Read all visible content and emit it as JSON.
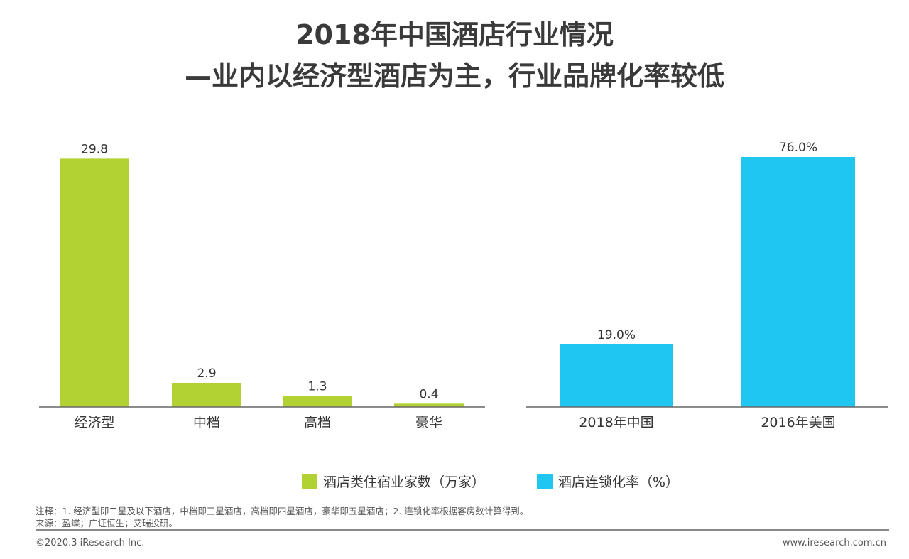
{
  "title": {
    "line1": "2018年中国酒店行业情况",
    "line2": "—业内以经济型酒店为主，行业品牌化率较低"
  },
  "chart_data": [
    {
      "type": "bar",
      "categories": [
        "经济型",
        "中档",
        "高档",
        "豪华"
      ],
      "values": [
        29.8,
        2.9,
        1.3,
        0.4
      ],
      "labels": [
        "29.8",
        "2.9",
        "1.3",
        "0.4"
      ],
      "series_name": "酒店类住宿业家数（万家）",
      "color": "#b2d234",
      "ylim": [
        0,
        30
      ],
      "grid": false
    },
    {
      "type": "bar",
      "categories": [
        "2018年中国",
        "2016年美国"
      ],
      "values": [
        19.0,
        76.0
      ],
      "labels": [
        "19.0%",
        "76.0%"
      ],
      "series_name": "酒店连锁化率（%）",
      "color": "#1fc6f0",
      "ylim": [
        0,
        76
      ],
      "grid": false
    }
  ],
  "notes": {
    "note": "注释：1. 经济型即二星及以下酒店，中档即三星酒店，高档即四星酒店，豪华即五星酒店；2. 连锁化率根据客房数计算得到。",
    "source": "来源：盈蝶；广证恒生；艾瑞投研。"
  },
  "footer": {
    "copyright": "©2020.3 iResearch Inc.",
    "url": "www.iresearch.com.cn"
  }
}
